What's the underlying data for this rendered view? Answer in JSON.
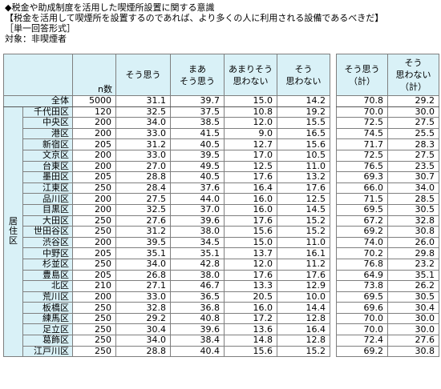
{
  "title_lines": [
    "◆税金や助成制度を活用した喫煙所設置に関する意識",
    "【税金を活用して喫煙所を設置するのであれば、より多くの人に利用される設備であるべきだ】",
    "［単一回答形式］",
    "対象：非喫煙者"
  ],
  "columns": {
    "n": "n数",
    "c1": [
      "そう思う"
    ],
    "c2": [
      "まあ",
      "そう思う"
    ],
    "c3": [
      "あまりそう",
      "思わない"
    ],
    "c4": [
      "そう",
      "思わない"
    ],
    "s1": [
      "そう思う",
      "（計）"
    ],
    "s2": [
      "そう",
      "思わない",
      "（計）"
    ]
  },
  "region_label": [
    "居",
    "住",
    "区"
  ],
  "total": {
    "label": "全体",
    "n": "5000",
    "v": [
      "31.1",
      "39.7",
      "15.0",
      "14.2"
    ],
    "s": [
      "70.8",
      "29.2"
    ]
  },
  "rows": [
    {
      "label": "千代田区",
      "n": "120",
      "v": [
        "32.5",
        "37.5",
        "10.8",
        "19.2"
      ],
      "s": [
        "70.0",
        "30.0"
      ]
    },
    {
      "label": "中央区",
      "n": "200",
      "v": [
        "34.0",
        "38.5",
        "12.0",
        "15.5"
      ],
      "s": [
        "72.5",
        "27.5"
      ]
    },
    {
      "label": "港区",
      "n": "200",
      "v": [
        "33.0",
        "41.5",
        "9.0",
        "16.5"
      ],
      "s": [
        "74.5",
        "25.5"
      ]
    },
    {
      "label": "新宿区",
      "n": "205",
      "v": [
        "31.2",
        "40.5",
        "12.7",
        "15.6"
      ],
      "s": [
        "71.7",
        "28.3"
      ]
    },
    {
      "label": "文京区",
      "n": "200",
      "v": [
        "33.0",
        "39.5",
        "17.0",
        "10.5"
      ],
      "s": [
        "72.5",
        "27.5"
      ]
    },
    {
      "label": "台東区",
      "n": "200",
      "v": [
        "27.0",
        "49.5",
        "12.5",
        "11.0"
      ],
      "s": [
        "76.5",
        "23.5"
      ]
    },
    {
      "label": "墨田区",
      "n": "205",
      "v": [
        "28.8",
        "40.5",
        "17.6",
        "13.2"
      ],
      "s": [
        "69.3",
        "30.7"
      ]
    },
    {
      "label": "江東区",
      "n": "250",
      "v": [
        "28.4",
        "37.6",
        "16.4",
        "17.6"
      ],
      "s": [
        "66.0",
        "34.0"
      ]
    },
    {
      "label": "品川区",
      "n": "200",
      "v": [
        "27.5",
        "44.0",
        "16.0",
        "12.5"
      ],
      "s": [
        "71.5",
        "28.5"
      ]
    },
    {
      "label": "目黒区",
      "n": "200",
      "v": [
        "32.5",
        "37.0",
        "16.0",
        "14.5"
      ],
      "s": [
        "69.5",
        "30.5"
      ]
    },
    {
      "label": "大田区",
      "n": "250",
      "v": [
        "27.6",
        "39.6",
        "17.6",
        "15.2"
      ],
      "s": [
        "67.2",
        "32.8"
      ]
    },
    {
      "label": "世田谷区",
      "n": "250",
      "v": [
        "31.2",
        "38.0",
        "15.6",
        "15.2"
      ],
      "s": [
        "69.2",
        "30.8"
      ]
    },
    {
      "label": "渋谷区",
      "n": "200",
      "v": [
        "39.5",
        "34.5",
        "15.0",
        "11.0"
      ],
      "s": [
        "74.0",
        "26.0"
      ]
    },
    {
      "label": "中野区",
      "n": "205",
      "v": [
        "35.1",
        "35.1",
        "13.7",
        "16.1"
      ],
      "s": [
        "70.2",
        "29.8"
      ]
    },
    {
      "label": "杉並区",
      "n": "250",
      "v": [
        "34.0",
        "42.8",
        "12.0",
        "11.2"
      ],
      "s": [
        "76.8",
        "23.2"
      ]
    },
    {
      "label": "豊島区",
      "n": "205",
      "v": [
        "26.8",
        "38.0",
        "17.6",
        "17.6"
      ],
      "s": [
        "64.9",
        "35.1"
      ]
    },
    {
      "label": "北区",
      "n": "210",
      "v": [
        "27.1",
        "46.7",
        "13.3",
        "12.9"
      ],
      "s": [
        "73.8",
        "26.2"
      ]
    },
    {
      "label": "荒川区",
      "n": "200",
      "v": [
        "33.0",
        "36.5",
        "20.5",
        "10.0"
      ],
      "s": [
        "69.5",
        "30.5"
      ]
    },
    {
      "label": "板橋区",
      "n": "250",
      "v": [
        "32.8",
        "36.8",
        "16.0",
        "14.4"
      ],
      "s": [
        "69.6",
        "30.4"
      ]
    },
    {
      "label": "練馬区",
      "n": "250",
      "v": [
        "29.2",
        "40.8",
        "17.2",
        "12.8"
      ],
      "s": [
        "70.0",
        "30.0"
      ]
    },
    {
      "label": "足立区",
      "n": "250",
      "v": [
        "30.4",
        "39.6",
        "13.6",
        "16.4"
      ],
      "s": [
        "70.0",
        "30.0"
      ]
    },
    {
      "label": "葛飾区",
      "n": "250",
      "v": [
        "34.0",
        "38.4",
        "14.8",
        "12.8"
      ],
      "s": [
        "72.4",
        "27.6"
      ]
    },
    {
      "label": "江戸川区",
      "n": "250",
      "v": [
        "28.8",
        "40.4",
        "15.6",
        "15.2"
      ],
      "s": [
        "69.2",
        "30.8"
      ]
    }
  ]
}
